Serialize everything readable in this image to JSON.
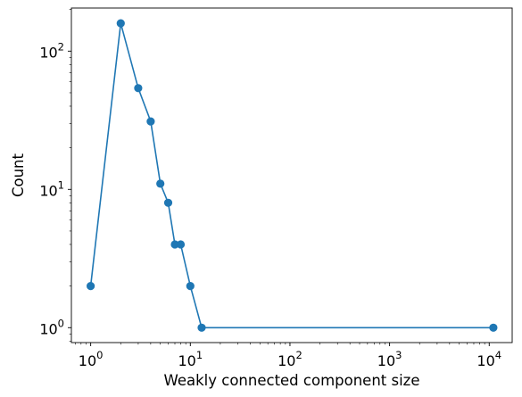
{
  "chart_data": {
    "type": "line",
    "xlabel": "Weakly connected component size",
    "ylabel": "Count",
    "xscale": "log",
    "yscale": "log",
    "xlim": [
      0.64,
      17000
    ],
    "ylim": [
      0.78,
      205
    ],
    "grid": false,
    "series": [
      {
        "color": "#1f77b4",
        "marker": "circle",
        "x": [
          1,
          2,
          3,
          4,
          5,
          6,
          7,
          8,
          10,
          13,
          11000
        ],
        "y": [
          2,
          159,
          54,
          31,
          11,
          8,
          4,
          4,
          2,
          1,
          1
        ]
      }
    ],
    "x_ticks": [
      {
        "base": "10",
        "exp": "0"
      },
      {
        "base": "10",
        "exp": "1"
      },
      {
        "base": "10",
        "exp": "2"
      },
      {
        "base": "10",
        "exp": "3"
      },
      {
        "base": "10",
        "exp": "4"
      }
    ],
    "y_ticks": [
      {
        "base": "10",
        "exp": "0"
      },
      {
        "base": "10",
        "exp": "1"
      },
      {
        "base": "10",
        "exp": "2"
      }
    ]
  }
}
